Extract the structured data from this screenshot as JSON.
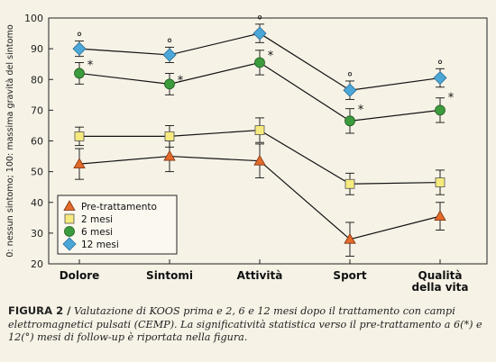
{
  "chart_data": {
    "type": "line",
    "ylabel": "0: nessun sintomo; 100: massima gravità del sintomo",
    "xlabel": "",
    "ylim": [
      20,
      100
    ],
    "yticks": [
      20,
      30,
      40,
      50,
      60,
      70,
      80,
      90,
      100
    ],
    "grid": false,
    "legend_position": "bottom-left",
    "categories": [
      "Dolore",
      "Sintomi",
      "Attività",
      "Sport",
      "Qualità\ndella vita"
    ],
    "series": [
      {
        "name": "Pre-trattamento",
        "marker": "triangle",
        "color": "#e36a2a",
        "values": [
          52.5,
          55,
          53.5,
          28,
          35.5
        ],
        "errors": [
          5,
          5,
          5.5,
          5.5,
          4.5
        ]
      },
      {
        "name": "2 mesi",
        "marker": "square",
        "color": "#f6ea7e",
        "values": [
          61.5,
          61.5,
          63.5,
          46,
          46.5
        ],
        "errors": [
          3,
          3.5,
          4,
          3.5,
          4
        ]
      },
      {
        "name": "6 mesi",
        "marker": "circle",
        "color": "#3c9b3c",
        "values": [
          82,
          78.5,
          85.5,
          66.5,
          70
        ],
        "errors": [
          3.5,
          3.5,
          4,
          4,
          4
        ]
      },
      {
        "name": "12 mesi",
        "marker": "diamond",
        "color": "#4aa7d8",
        "values": [
          90,
          88,
          95,
          76.5,
          80.5
        ],
        "errors": [
          2.5,
          2.5,
          3,
          3,
          3
        ]
      }
    ],
    "annotations": [
      {
        "category": 0,
        "y": 85.5,
        "text": "*"
      },
      {
        "category": 0,
        "y": 93.5,
        "text": "°"
      },
      {
        "category": 1,
        "y": 80.5,
        "text": "*"
      },
      {
        "category": 1,
        "y": 91.5,
        "text": "°"
      },
      {
        "category": 2,
        "y": 88.5,
        "text": "*"
      },
      {
        "category": 2,
        "y": 99,
        "text": "°"
      },
      {
        "category": 3,
        "y": 71,
        "text": "*"
      },
      {
        "category": 3,
        "y": 80.5,
        "text": "°"
      },
      {
        "category": 4,
        "y": 75,
        "text": "*"
      },
      {
        "category": 4,
        "y": 84.5,
        "text": "°"
      }
    ]
  },
  "caption": {
    "label": "FIGURA 2 /",
    "text": "Valutazione di KOOS prima e 2, 6 e 12 mesi dopo il trattamento con campi elettromagnetici pulsati (CEMP). La significatività statistica verso il pre-trattamento a 6(*) e 12(°) mesi di follow-up è riportata nella figura."
  }
}
